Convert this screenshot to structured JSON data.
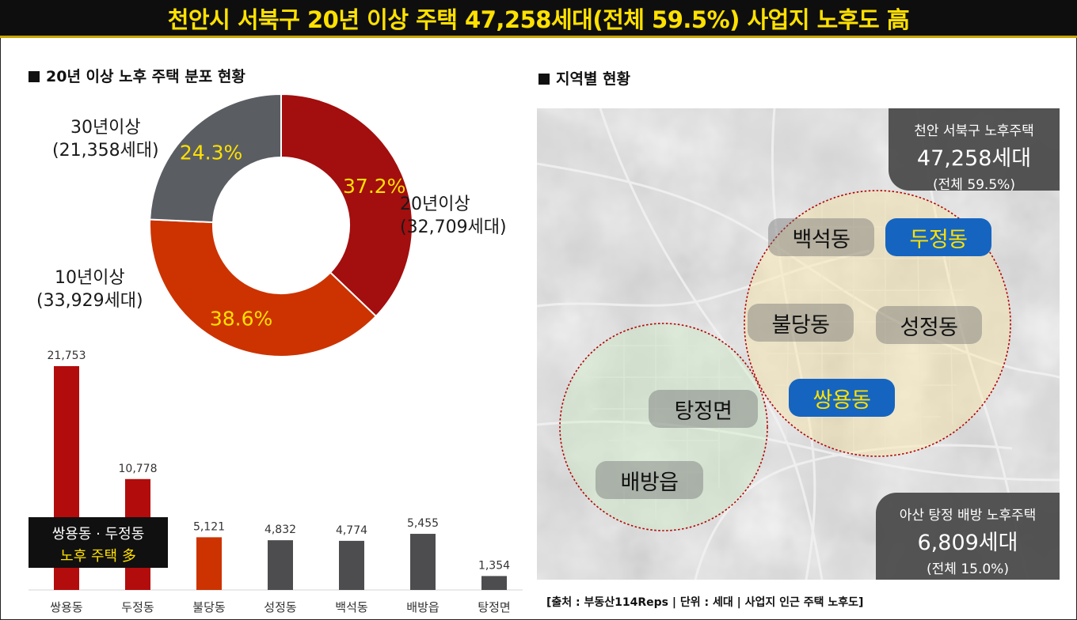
{
  "title": "천안시 서북구 20년 이상 주택 47,258세대(전체 59.5%) 사업지 노후도 高",
  "left_section_title": "20년 이상 노후 주택 분포 현황",
  "right_section_title": "지역별 현황",
  "chart_data": [
    {
      "type": "pie",
      "donut": true,
      "slices": [
        {
          "label": "20년이상",
          "households": "(32,709세대)",
          "value": 37.2,
          "pct_label": "37.2%",
          "color": "#a30e0e"
        },
        {
          "label": "10년이상",
          "households": "(33,929세대)",
          "value": 38.6,
          "pct_label": "38.6%",
          "color": "#cc3300"
        },
        {
          "label": "30년이상",
          "households": "(21,358세대)",
          "value": 24.3,
          "pct_label": "24.3%",
          "color": "#5a5e63"
        }
      ]
    },
    {
      "type": "bar",
      "categories": [
        "쌍용동",
        "두정동",
        "불당동",
        "성정동",
        "백석동",
        "배방읍",
        "탕정면"
      ],
      "values": [
        21753,
        10778,
        5121,
        4832,
        4774,
        5455,
        1354
      ],
      "value_labels": [
        "21,753",
        "10,778",
        "5,121",
        "4,832",
        "4,774",
        "5,455",
        "1,354"
      ],
      "colors": [
        "#b30c0c",
        "#b30c0c",
        "#cc3300",
        "#4d4d4f",
        "#4d4d4f",
        "#4d4d4f",
        "#4d4d4f"
      ],
      "ylim": [
        0,
        21753
      ]
    }
  ],
  "callout": {
    "line1": "쌍용동 · 두정동",
    "line2": "노후 주택 多"
  },
  "map": {
    "info_top": {
      "line1": "천안 서북구 노후주택",
      "line2": "47,258세대",
      "line3": "(전체 59.5%)"
    },
    "info_bottom": {
      "line1": "아산 탕정 배방 노후주택",
      "line2": "6,809세대",
      "line3": "(전체 15.0%)"
    },
    "areas": [
      "백석동",
      "두정동",
      "불당동",
      "성정동",
      "쌍용동",
      "탕정면",
      "배방읍"
    ]
  },
  "source": "[출처 : 부동산114Reps | 단위 : 세대 | 사업지 인근 주택 노후도]"
}
